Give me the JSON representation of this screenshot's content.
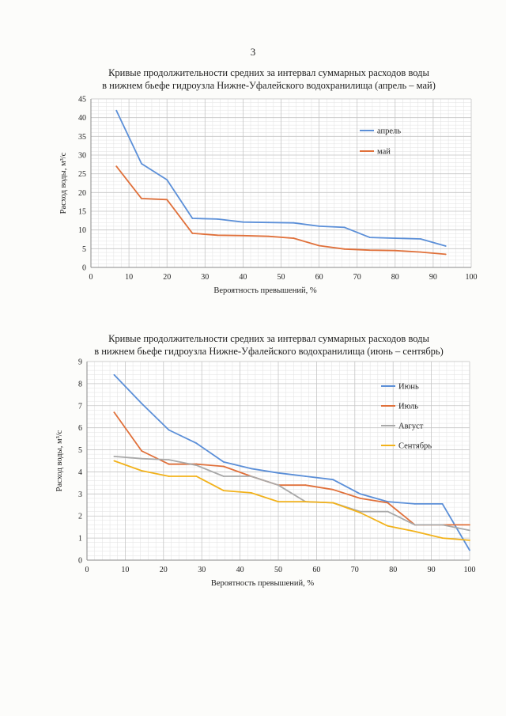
{
  "page": {
    "number": "3"
  },
  "chart_data": [
    {
      "type": "line",
      "title_lines": [
        "Кривые продолжительности средних за интервал суммарных расходов воды",
        "в нижнем бьефе гидроузла Нижне-Уфалейского водохранилища (апрель – май)"
      ],
      "xlabel": "Вероятность превышений, %",
      "ylabel": "Расход воды, м³/с",
      "xlim": [
        0,
        100
      ],
      "ylim": [
        0,
        45
      ],
      "xticks": [
        0,
        10,
        20,
        30,
        40,
        50,
        60,
        70,
        80,
        90,
        100
      ],
      "yticks": [
        0,
        5,
        10,
        15,
        20,
        25,
        30,
        35,
        40,
        45
      ],
      "grid": true,
      "legend_position": "top-right",
      "series": [
        {
          "name": "апрель",
          "color": "#5b8fd8",
          "x": [
            6.7,
            13.3,
            20,
            26.7,
            33.3,
            40,
            46.7,
            53.3,
            60,
            66.7,
            73.3,
            80,
            86.7,
            93.3
          ],
          "y": [
            41.9,
            27.7,
            23.4,
            13.1,
            12.9,
            12.1,
            12.0,
            11.9,
            11.0,
            10.7,
            8.0,
            7.8,
            7.6,
            5.7
          ]
        },
        {
          "name": "май",
          "color": "#e0703a",
          "x": [
            6.7,
            13.3,
            20,
            26.7,
            33.3,
            40,
            46.7,
            53.3,
            60,
            66.7,
            73.3,
            80,
            86.7,
            93.3
          ],
          "y": [
            27.0,
            18.4,
            18.1,
            9.1,
            8.6,
            8.5,
            8.3,
            7.8,
            5.8,
            4.9,
            4.6,
            4.5,
            4.1,
            3.5
          ]
        }
      ]
    },
    {
      "type": "line",
      "title_lines": [
        "Кривые продолжительности средних за интервал суммарных расходов воды",
        "в нижнем бьефе гидроузла Нижне-Уфалейского водохранилища (июнь – сентябрь)"
      ],
      "xlabel": "Вероятность превышений, %",
      "ylabel": "Расход воды, м³/с",
      "xlim": [
        0,
        100
      ],
      "ylim": [
        0,
        9
      ],
      "xticks": [
        0,
        10,
        20,
        30,
        40,
        50,
        60,
        70,
        80,
        90,
        100
      ],
      "yticks": [
        0,
        1,
        2,
        3,
        4,
        5,
        6,
        7,
        8,
        9
      ],
      "grid": true,
      "legend_position": "top-right",
      "series": [
        {
          "name": "Июнь",
          "color": "#5b8fd8",
          "x": [
            7.1,
            14.3,
            21.4,
            28.6,
            35.7,
            42.9,
            50,
            57.1,
            64.3,
            71.4,
            78.6,
            85.7,
            92.9,
            100
          ],
          "y": [
            8.4,
            7.1,
            5.9,
            5.3,
            4.45,
            4.15,
            3.95,
            3.8,
            3.65,
            3.0,
            2.65,
            2.55,
            2.55,
            0.45
          ]
        },
        {
          "name": "Июль",
          "color": "#e0703a",
          "x": [
            7.1,
            14.3,
            21.4,
            28.6,
            35.7,
            42.9,
            50,
            57.1,
            64.3,
            71.4,
            78.6,
            85.7,
            92.9,
            100
          ],
          "y": [
            6.7,
            4.95,
            4.35,
            4.35,
            4.25,
            3.8,
            3.4,
            3.4,
            3.2,
            2.8,
            2.6,
            1.6,
            1.6,
            1.6
          ]
        },
        {
          "name": "Август",
          "color": "#a9a9a9",
          "x": [
            7.1,
            14.3,
            21.4,
            28.6,
            35.7,
            42.9,
            50,
            57.1,
            64.3,
            71.4,
            78.6,
            85.7,
            92.9,
            100
          ],
          "y": [
            4.7,
            4.6,
            4.55,
            4.3,
            3.8,
            3.8,
            3.4,
            2.65,
            2.6,
            2.2,
            2.2,
            1.6,
            1.6,
            1.35
          ]
        },
        {
          "name": "Сентябрь",
          "color": "#f2b21b",
          "x": [
            7.1,
            14.3,
            21.4,
            28.6,
            35.7,
            42.9,
            50,
            57.1,
            64.3,
            71.4,
            78.6,
            85.7,
            92.9,
            100
          ],
          "y": [
            4.5,
            4.05,
            3.8,
            3.8,
            3.15,
            3.05,
            2.65,
            2.65,
            2.6,
            2.15,
            1.55,
            1.3,
            1.0,
            0.9
          ]
        }
      ]
    }
  ]
}
